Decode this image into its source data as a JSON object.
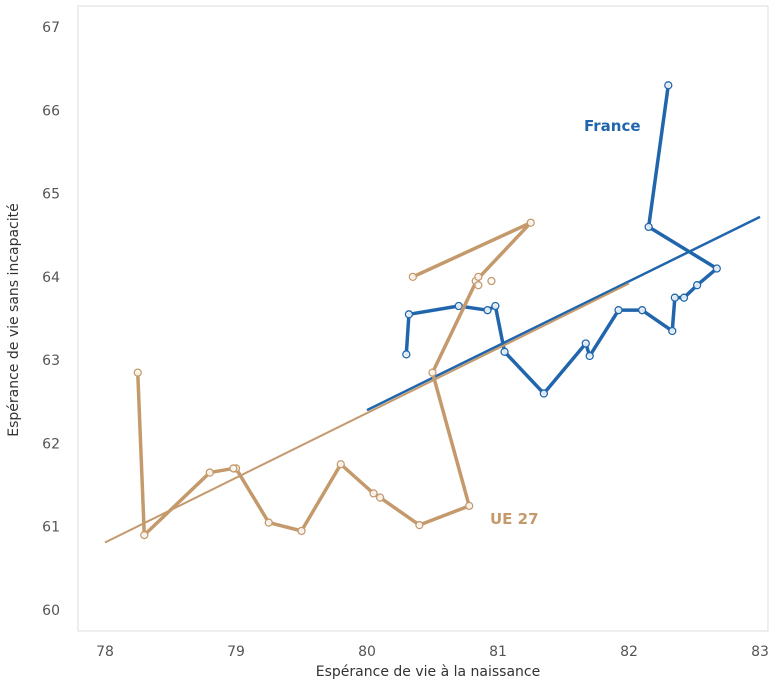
{
  "chart_data": {
    "type": "scatter",
    "xlabel": "Espérance de vie à la naissance",
    "ylabel": "Espérance de vie sans incapacité",
    "xlim": [
      78,
      83
    ],
    "ylim": [
      60,
      67
    ],
    "x_ticks": [
      "78",
      "79",
      "80",
      "81",
      "82",
      "83"
    ],
    "y_ticks": [
      "60",
      "61",
      "62",
      "63",
      "64",
      "65",
      "66",
      "67"
    ],
    "grid": false,
    "series": [
      {
        "name": "France",
        "color": "#2166ac",
        "points": [
          [
            82.3,
            66.3
          ],
          [
            82.15,
            64.6
          ],
          [
            82.67,
            64.1
          ],
          [
            82.52,
            63.9
          ],
          [
            82.42,
            63.75
          ],
          [
            82.35,
            63.75
          ],
          [
            82.33,
            63.35
          ],
          [
            82.1,
            63.6
          ],
          [
            81.92,
            63.6
          ],
          [
            81.7,
            63.05
          ],
          [
            81.67,
            63.2
          ],
          [
            81.35,
            62.6
          ],
          [
            81.05,
            63.1
          ],
          [
            80.98,
            63.65
          ],
          [
            80.92,
            63.6
          ],
          [
            80.7,
            63.65
          ],
          [
            80.32,
            63.55
          ],
          [
            80.3,
            63.07
          ]
        ],
        "trend": [
          [
            80.0,
            62.4
          ],
          [
            83.0,
            64.72
          ]
        ]
      },
      {
        "name": "UE 27",
        "color": "#c49a6c",
        "points": [
          [
            81.25,
            64.65
          ],
          [
            80.83,
            63.95
          ],
          [
            80.85,
            64.0
          ],
          [
            80.5,
            62.85
          ],
          [
            80.78,
            61.25
          ],
          [
            80.4,
            61.02
          ],
          [
            80.1,
            61.35
          ],
          [
            80.05,
            61.4
          ],
          [
            79.8,
            61.75
          ],
          [
            79.5,
            60.95
          ],
          [
            79.25,
            61.05
          ],
          [
            79.0,
            61.7
          ],
          [
            78.98,
            61.7
          ],
          [
            78.8,
            61.65
          ],
          [
            78.3,
            60.9
          ],
          [
            78.25,
            62.85
          ]
        ],
        "extra_segment": [
          [
            80.35,
            64.0
          ],
          [
            81.25,
            64.65
          ]
        ],
        "extra_points": [
          [
            80.35,
            64.0
          ],
          [
            80.85,
            63.9
          ],
          [
            80.95,
            63.95
          ]
        ],
        "trend": [
          [
            78.0,
            60.81
          ],
          [
            82.0,
            63.92
          ]
        ]
      }
    ]
  }
}
